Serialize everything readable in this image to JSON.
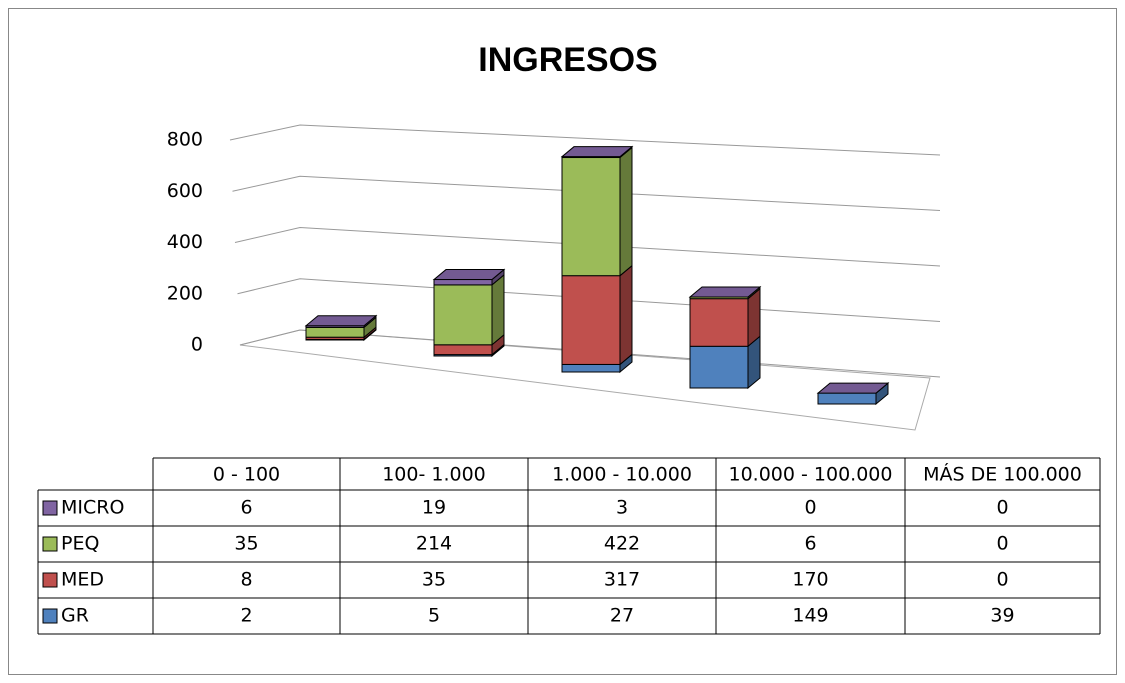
{
  "chart_data": {
    "type": "bar3d-stacked",
    "title": "INGRESOS",
    "categories": [
      "0 - 100",
      "100- 1.000",
      "1.000 - 10.000",
      "10.000 - 100.000",
      "MÁS DE 100.000"
    ],
    "series": [
      {
        "name": "GR",
        "color": "#4f81bd",
        "values": [
          2,
          5,
          27,
          149,
          39
        ]
      },
      {
        "name": "MED",
        "color": "#c0504d",
        "values": [
          8,
          35,
          317,
          170,
          0
        ]
      },
      {
        "name": "PEQ",
        "color": "#9bbb59",
        "values": [
          35,
          214,
          422,
          6,
          0
        ]
      },
      {
        "name": "MICRO",
        "color": "#8064a2",
        "values": [
          6,
          19,
          3,
          0,
          0
        ]
      }
    ],
    "ylim": [
      0,
      800
    ],
    "yticks": [
      0,
      200,
      400,
      600,
      800
    ],
    "grid": true
  }
}
